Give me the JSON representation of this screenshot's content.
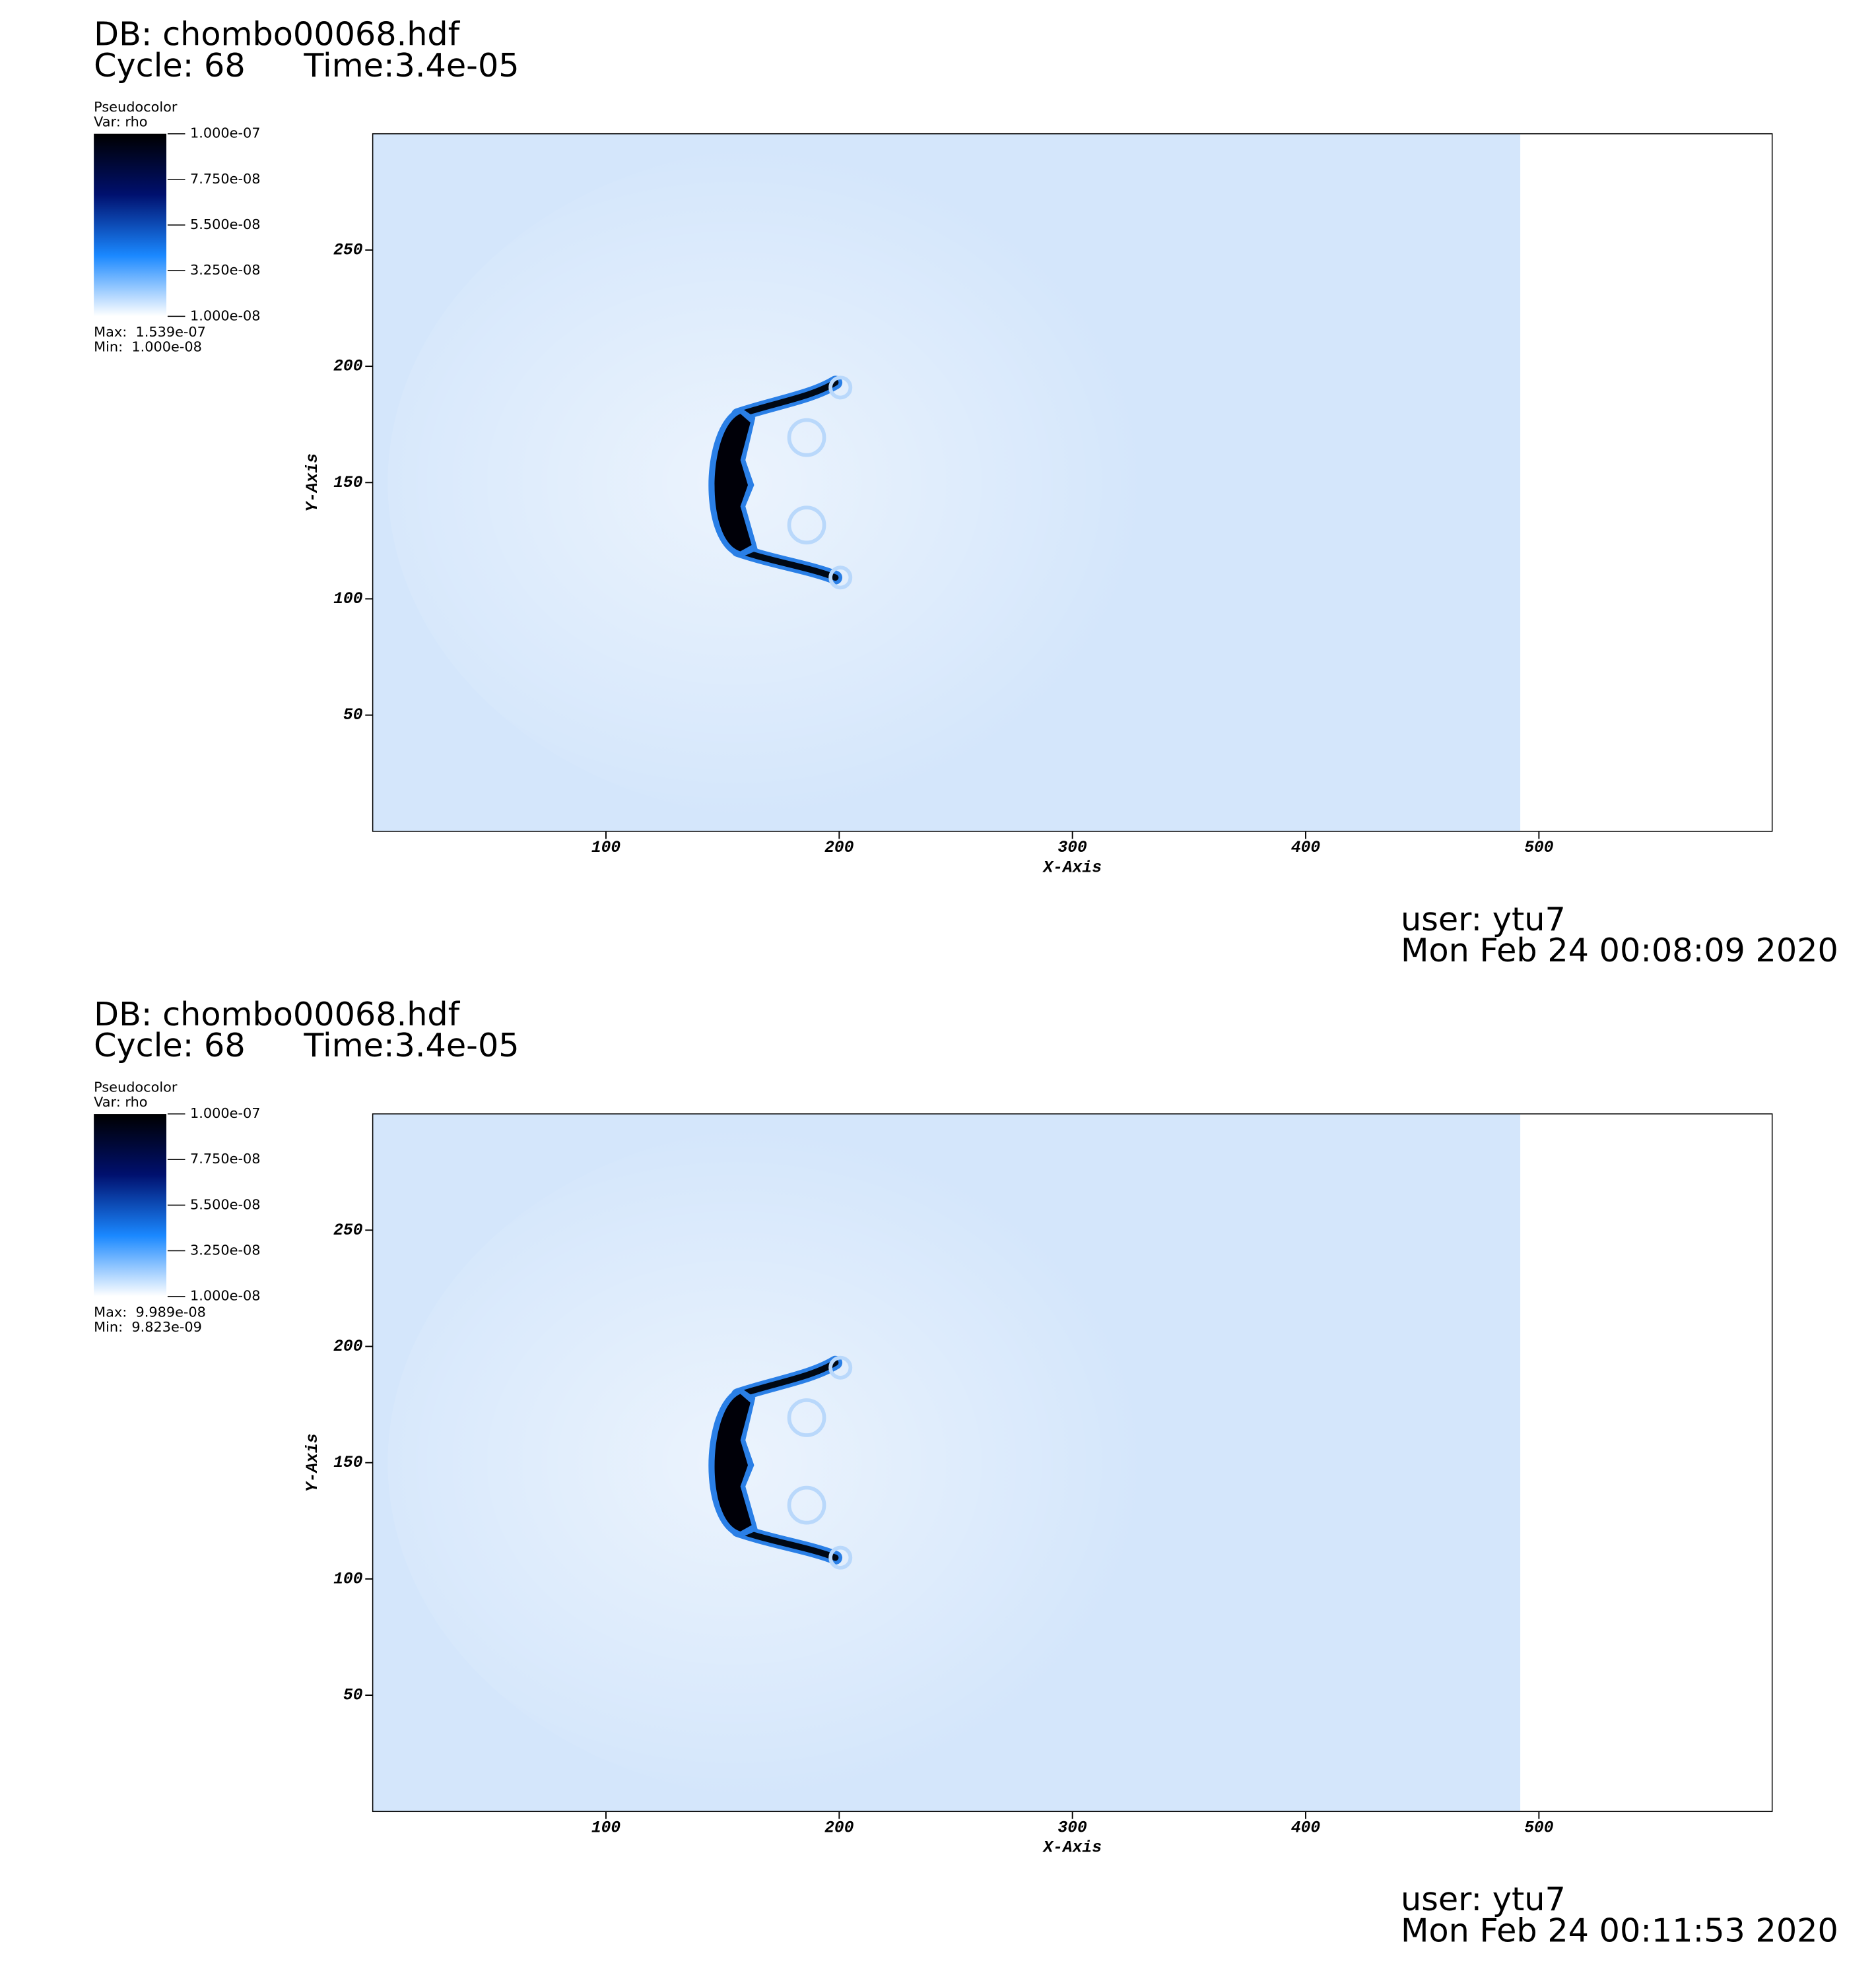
{
  "chart_data": [
    {
      "type": "pseudocolor",
      "title": "DB: chombo00068.hdf",
      "cycle": "Cycle: 68",
      "time": "Time:3.4e-05",
      "legend_title": "Pseudocolor",
      "variable": "Var: rho",
      "colorbar_lim": [
        1e-08,
        1e-07
      ],
      "colorbar_ticks": [
        {
          "value": 1e-07,
          "label": "1.000e-07"
        },
        {
          "value": 7.75e-08,
          "label": "7.750e-08"
        },
        {
          "value": 5.5e-08,
          "label": "5.500e-08"
        },
        {
          "value": 3.25e-08,
          "label": "3.250e-08"
        },
        {
          "value": 1e-08,
          "label": "1.000e-08"
        }
      ],
      "colorbar_colors": [
        "#ffffff",
        "#1a88ff",
        "#00106e",
        "#000000"
      ],
      "max_label": "Max:  1.539e-07",
      "min_label": "Min:  1.000e-08",
      "xlabel": "X-Axis",
      "ylabel": "Y-Axis",
      "xlim": [
        0,
        600
      ],
      "ylim": [
        0,
        300
      ],
      "xticks": [
        100,
        200,
        300,
        400,
        500
      ],
      "yticks": [
        50,
        100,
        150,
        200,
        250
      ],
      "data_xlim": [
        0,
        492
      ],
      "field_color": "#d4e6fb",
      "user": "user: ytu7",
      "date": "Mon Feb 24 00:08:09 2020"
    },
    {
      "type": "pseudocolor",
      "title": "DB: chombo00068.hdf",
      "cycle": "Cycle: 68",
      "time": "Time:3.4e-05",
      "legend_title": "Pseudocolor",
      "variable": "Var: rho",
      "colorbar_lim": [
        1e-08,
        1e-07
      ],
      "colorbar_ticks": [
        {
          "value": 1e-07,
          "label": "1.000e-07"
        },
        {
          "value": 7.75e-08,
          "label": "7.750e-08"
        },
        {
          "value": 5.5e-08,
          "label": "5.500e-08"
        },
        {
          "value": 3.25e-08,
          "label": "3.250e-08"
        },
        {
          "value": 1e-08,
          "label": "1.000e-08"
        }
      ],
      "colorbar_colors": [
        "#ffffff",
        "#1a88ff",
        "#00106e",
        "#000000"
      ],
      "max_label": "Max:  9.989e-08",
      "min_label": "Min:  9.823e-09",
      "xlabel": "X-Axis",
      "ylabel": "Y-Axis",
      "xlim": [
        0,
        600
      ],
      "ylim": [
        0,
        300
      ],
      "xticks": [
        100,
        200,
        300,
        400,
        500
      ],
      "yticks": [
        50,
        100,
        150,
        200,
        250
      ],
      "data_xlim": [
        0,
        492
      ],
      "field_color": "#d4e6fb",
      "user": "user: ytu7",
      "date": "Mon Feb 24 00:11:53 2020"
    }
  ]
}
